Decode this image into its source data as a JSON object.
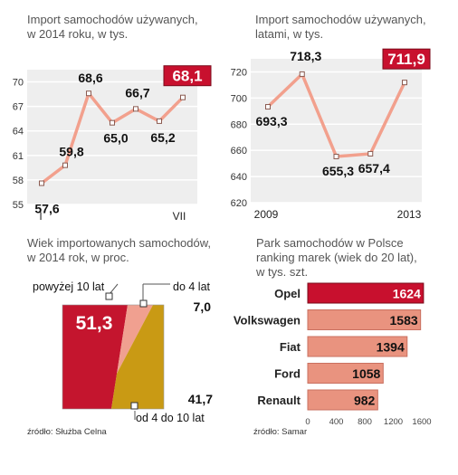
{
  "colors": {
    "line": "#f2a08d",
    "marker": "#8a5a50",
    "plot_bg": "#eeeeee",
    "grid": "#ffffff",
    "accent_red": "#c8102e",
    "pie_red": "#c4152e",
    "pie_pink": "#f0a090",
    "pie_gold": "#c99a14",
    "bar": "#e9937f"
  },
  "chart_data": [
    {
      "id": "monthly",
      "type": "line",
      "title": "Import samochodów używanych,\nw 2014 roku, w tys.",
      "x_tick_first": "I",
      "x_tick_last": "VII",
      "x": [
        1,
        2,
        3,
        4,
        5,
        6,
        7
      ],
      "values": [
        57.6,
        59.8,
        68.6,
        65.0,
        66.7,
        65.2,
        68.1
      ],
      "value_labels": [
        "57,6",
        "59,8",
        "68,6",
        "65,0",
        "66,7",
        "65,2",
        "68,1"
      ],
      "highlight_index": 6,
      "yticks": [
        "70",
        "67",
        "64",
        "61",
        "58",
        "55"
      ],
      "ylim": [
        55,
        71.5
      ],
      "grid": true
    },
    {
      "id": "yearly",
      "type": "line",
      "title": "Import samochodów używanych,\nlatami, w tys.",
      "x_tick_first": "2009",
      "x_tick_last": "2013",
      "x": [
        2009,
        2010,
        2011,
        2012,
        2013
      ],
      "values": [
        693.3,
        718.3,
        655.3,
        657.4,
        711.9
      ],
      "value_labels": [
        "693,3",
        "718,3",
        "655,3",
        "657,4",
        "711,9"
      ],
      "highlight_index": 4,
      "yticks": [
        "720",
        "700",
        "680",
        "660",
        "640",
        "620"
      ],
      "ylim": [
        620,
        730
      ],
      "grid": true
    },
    {
      "id": "age",
      "type": "pie",
      "title": "Wiek importowanych samochodów,\nw 2014 rok, w proc.",
      "slices": [
        {
          "name": "powyżej 10 lat",
          "value": 51.3,
          "label": "51,3"
        },
        {
          "name": "do 4 lat",
          "value": 7.0,
          "label": "7,0"
        },
        {
          "name": "od 4 do 10 lat",
          "value": 41.7,
          "label": "41,7"
        }
      ]
    },
    {
      "id": "brands",
      "type": "bar",
      "title": "Park  samochodów w Polsce\nranking marek (wiek do 20 lat),\nw tys. szt.",
      "categories": [
        "Opel",
        "Volkswagen",
        "Fiat",
        "Ford",
        "Renault"
      ],
      "values": [
        1624,
        1583,
        1394,
        1058,
        982
      ],
      "xticks": [
        "0",
        "400",
        "800",
        "1200",
        "1600"
      ],
      "xlim": [
        0,
        1600
      ],
      "highlight_index": 0
    }
  ],
  "sources": {
    "left": "źródło: Służba Celna",
    "right": "źródło: Samar"
  }
}
